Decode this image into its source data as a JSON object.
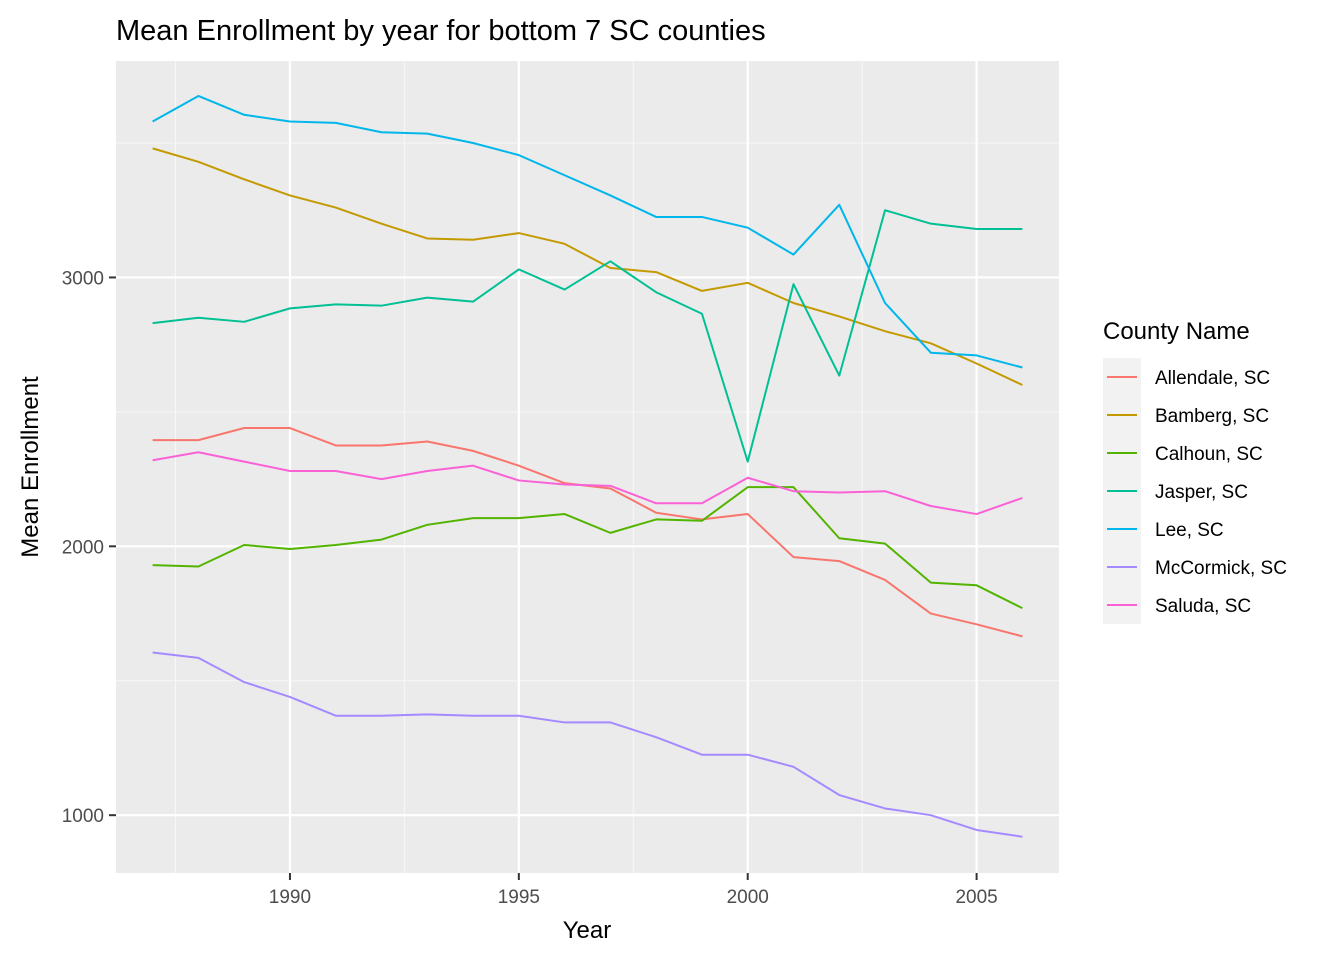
{
  "chart_data": {
    "type": "line",
    "title": "Mean Enrollment by year for bottom 7 SC counties",
    "xlabel": "Year",
    "ylabel": "Mean  Enrollment",
    "legend_title": "County Name",
    "legend_position": "right",
    "grid": true,
    "xlim": [
      1986.2,
      2006.8
    ],
    "ylim": [
      785,
      3805
    ],
    "x_ticks": [
      1990,
      1995,
      2000,
      2005
    ],
    "x_minor_ticks": [
      1987.5,
      1992.5,
      1997.5,
      2002.5
    ],
    "y_ticks": [
      1000,
      2000,
      3000
    ],
    "y_minor_ticks": [
      1500,
      2500,
      3500
    ],
    "x": [
      1987,
      1988,
      1989,
      1990,
      1991,
      1992,
      1993,
      1994,
      1995,
      1996,
      1997,
      1998,
      1999,
      2000,
      2001,
      2002,
      2003,
      2004,
      2005,
      2006
    ],
    "series": [
      {
        "name": "Allendale, SC",
        "color": "#F8766D",
        "values": [
          2395,
          2395,
          2440,
          2440,
          2375,
          2375,
          2390,
          2355,
          2300,
          2235,
          2215,
          2125,
          2100,
          2120,
          1960,
          1945,
          1875,
          1750,
          1710,
          1665
        ]
      },
      {
        "name": "Bamberg, SC",
        "color": "#C49A00",
        "values": [
          3480,
          3430,
          3365,
          3305,
          3260,
          3200,
          3145,
          3140,
          3165,
          3125,
          3035,
          3020,
          2950,
          2980,
          2905,
          2855,
          2800,
          2755,
          2680,
          2600
        ]
      },
      {
        "name": "Calhoun, SC",
        "color": "#53B400",
        "values": [
          1930,
          1925,
          2005,
          1990,
          2005,
          2025,
          2080,
          2105,
          2105,
          2120,
          2050,
          2100,
          2095,
          2220,
          2220,
          2030,
          2010,
          1865,
          1855,
          1770
        ]
      },
      {
        "name": "Jasper, SC",
        "color": "#00C094",
        "values": [
          2830,
          2850,
          2835,
          2885,
          2900,
          2895,
          2925,
          2910,
          3030,
          2955,
          3060,
          2945,
          2865,
          2315,
          2975,
          2635,
          3250,
          3200,
          3180,
          3180
        ]
      },
      {
        "name": "Lee, SC",
        "color": "#00B6EB",
        "values": [
          3580,
          3675,
          3605,
          3580,
          3575,
          3540,
          3535,
          3500,
          3455,
          3380,
          3305,
          3225,
          3225,
          3185,
          3085,
          3270,
          2905,
          2720,
          2710,
          2665
        ]
      },
      {
        "name": "McCormick, SC",
        "color": "#A58AFF",
        "values": [
          1605,
          1585,
          1495,
          1440,
          1370,
          1370,
          1375,
          1370,
          1370,
          1345,
          1345,
          1290,
          1225,
          1225,
          1180,
          1075,
          1025,
          1000,
          945,
          920
        ]
      },
      {
        "name": "Saluda, SC",
        "color": "#FB61D7",
        "values": [
          2320,
          2350,
          2315,
          2280,
          2280,
          2250,
          2280,
          2300,
          2245,
          2230,
          2225,
          2160,
          2160,
          2255,
          2205,
          2200,
          2205,
          2150,
          2120,
          2180
        ]
      }
    ]
  }
}
